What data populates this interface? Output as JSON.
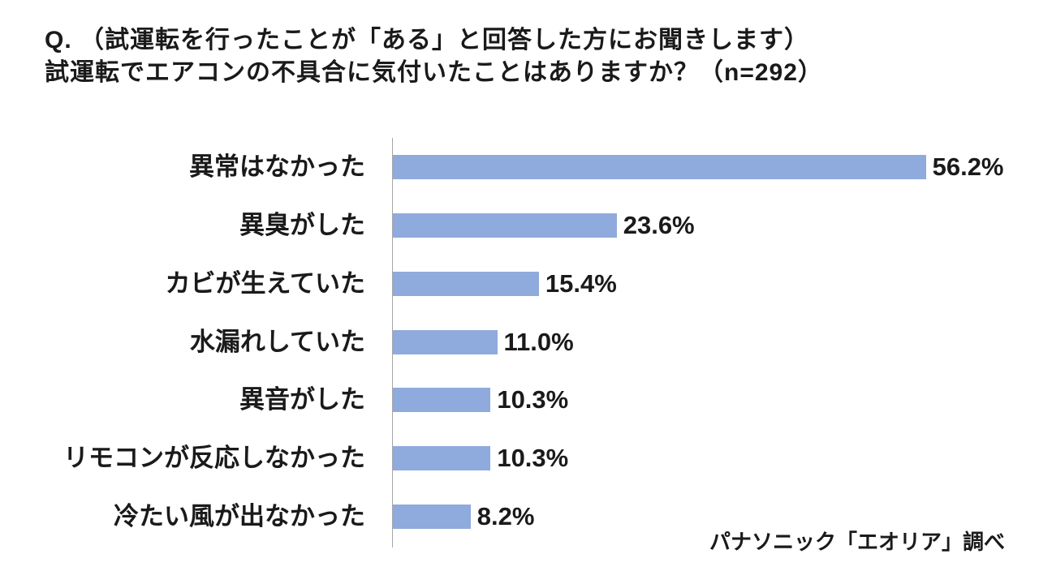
{
  "colors": {
    "background": "#FFFFFF",
    "text": "#1A1A1A",
    "bar": "#8FAADC",
    "axis": "#A6A6A6"
  },
  "chart_data": {
    "type": "bar",
    "orientation": "horizontal",
    "title_lines": [
      "Q. （試運転を行ったことが「ある」と回答した方にお聞きします）",
      "試運転でエアコンの不具合に気付いたことはありますか？（n=292）"
    ],
    "categories": [
      "異常はなかった",
      "異臭がした",
      "カビが生えていた",
      "水漏れしていた",
      "異音がした",
      "リモコンが反応しなかった",
      "冷たい風が出なかった"
    ],
    "values": [
      56.2,
      23.6,
      15.4,
      11.0,
      10.3,
      10.3,
      8.2
    ],
    "data_labels": [
      "56.2%",
      "23.6%",
      "15.4%",
      "11.0%",
      "10.3%",
      "10.3%",
      "8.2%"
    ],
    "xlim": [
      0,
      60
    ],
    "grid": false,
    "legend": "none",
    "source": "パナソニック「エオリア」調べ"
  }
}
